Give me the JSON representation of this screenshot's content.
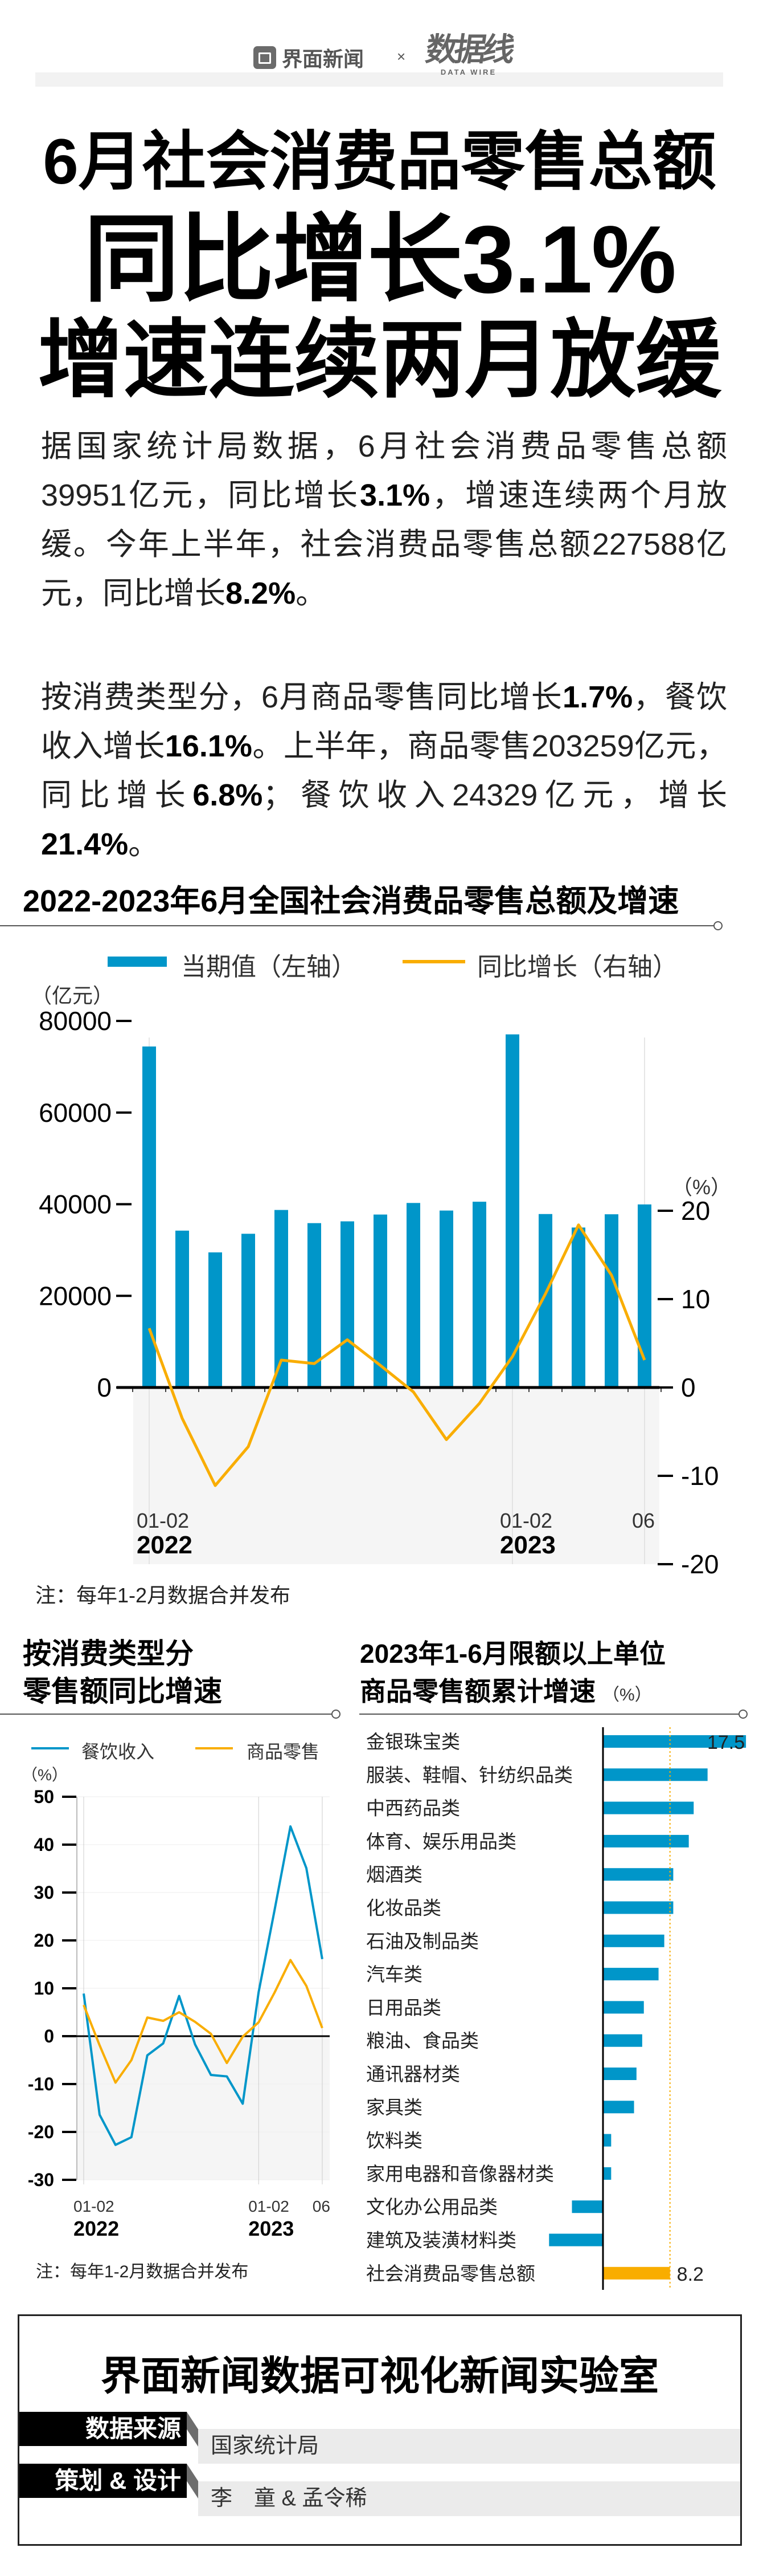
{
  "header": {
    "brand_left": "界面新闻",
    "separator": "×",
    "brand_right": "数据线",
    "brand_right_sub": "DATA WIRE"
  },
  "headline": {
    "line1": "6月社会消费品零售总额",
    "line2": "同比增长3.1%",
    "line3": "增速连续两月放缓"
  },
  "paragraphs": [
    [
      {
        "text": "据国家统计局数据，6月社会消费品零售总额39951亿元，同比增长",
        "bold": false
      },
      {
        "text": "3.1%",
        "bold": true
      },
      {
        "text": "，增速连续两个月放缓。今年上半年，社会消费品零售总额227588亿元，同比增长",
        "bold": false
      },
      {
        "text": "8.2%",
        "bold": true
      },
      {
        "text": "。",
        "bold": false
      }
    ],
    [
      {
        "text": "按消费类型分，6月商品零售同比增长",
        "bold": false
      },
      {
        "text": "1.7%",
        "bold": true
      },
      {
        "text": "，餐饮收入增长",
        "bold": false
      },
      {
        "text": "16.1%",
        "bold": true
      },
      {
        "text": "。上半年，商品零售203259亿元，同比增长",
        "bold": false
      },
      {
        "text": "6.8%",
        "bold": true
      },
      {
        "text": "；餐饮收入24329亿元，增长",
        "bold": false
      },
      {
        "text": "21.4%",
        "bold": true
      },
      {
        "text": "。",
        "bold": false
      }
    ]
  ],
  "colors": {
    "blue": "#0096c9",
    "orange": "#f9ad00",
    "shade": "#f5f5f5"
  },
  "chart_data": [
    {
      "type": "bar+line",
      "title": "2022-2023年6月全国社会消费品零售总额及增速",
      "legend": [
        "当期值（左轴）",
        "同比增长（右轴）"
      ],
      "left_axis": {
        "unit": "（亿元）",
        "range": [
          0,
          80000
        ],
        "ticks": [
          "0",
          "20000",
          "40000",
          "60000",
          "80000"
        ]
      },
      "right_axis": {
        "unit": "（%）",
        "range": [
          -20,
          20
        ],
        "ticks": [
          "-20",
          "-10",
          "0",
          "10",
          "20"
        ]
      },
      "categories": [
        "2022-01-02",
        "2022-03",
        "2022-04",
        "2022-05",
        "2022-06",
        "2022-07",
        "2022-08",
        "2022-09",
        "2022-10",
        "2022-11",
        "2022-12",
        "2023-01-02",
        "2023-03",
        "2023-04",
        "2023-05",
        "2023-06"
      ],
      "x_tick_labels": [
        {
          "index": 0,
          "label": "01-02",
          "year": "2022"
        },
        {
          "index": 11,
          "label": "01-02",
          "year": "2023"
        },
        {
          "index": 15,
          "label": "06",
          "year": ""
        }
      ],
      "series": [
        {
          "name": "当期值（左轴）",
          "axis": "left",
          "kind": "bar",
          "values": [
            74426,
            34233,
            29483,
            33547,
            38742,
            35870,
            36258,
            37745,
            40271,
            38615,
            40542,
            77067,
            37855,
            34910,
            37803,
            39951
          ]
        },
        {
          "name": "同比增长（右轴）",
          "axis": "right",
          "kind": "line",
          "values": [
            6.7,
            -3.5,
            -11.1,
            -6.7,
            3.1,
            2.7,
            5.4,
            2.5,
            -0.5,
            -5.9,
            -1.8,
            3.5,
            10.6,
            18.4,
            12.7,
            3.1
          ]
        }
      ],
      "note": "注：每年1-2月数据合并发布"
    },
    {
      "type": "line",
      "title": [
        "按消费类型分",
        "零售额同比增速"
      ],
      "legend": [
        "餐饮收入",
        "商品零售"
      ],
      "y_axis": {
        "unit": "（%）",
        "range": [
          -30,
          50
        ],
        "ticks": [
          "-30",
          "-20",
          "-10",
          "0",
          "10",
          "20",
          "30",
          "40",
          "50"
        ]
      },
      "categories": [
        "2022-01-02",
        "2022-03",
        "2022-04",
        "2022-05",
        "2022-06",
        "2022-07",
        "2022-08",
        "2022-09",
        "2022-10",
        "2022-11",
        "2022-12",
        "2023-01-02",
        "2023-03",
        "2023-04",
        "2023-05",
        "2023-06"
      ],
      "x_tick_labels": [
        {
          "index": 0,
          "label": "01-02",
          "year": "2022"
        },
        {
          "index": 11,
          "label": "01-02",
          "year": "2023"
        },
        {
          "index": 15,
          "label": "06",
          "year": ""
        }
      ],
      "series": [
        {
          "name": "餐饮收入",
          "values": [
            8.9,
            -16.4,
            -22.7,
            -21.1,
            -4.0,
            -1.5,
            8.4,
            -1.7,
            -8.1,
            -8.4,
            -14.1,
            9.2,
            26.3,
            43.8,
            35.1,
            16.1
          ]
        },
        {
          "name": "商品零售",
          "values": [
            6.5,
            -1.9,
            -9.7,
            -5.0,
            3.9,
            3.2,
            5.0,
            3.0,
            0.5,
            -5.6,
            -0.1,
            2.9,
            9.1,
            15.9,
            10.5,
            1.7
          ]
        }
      ],
      "note": "注：每年1-2月数据合并发布"
    },
    {
      "type": "bar",
      "orientation": "horizontal",
      "title": [
        "2023年1-6月限额以上单位",
        "商品零售额累计增速"
      ],
      "unit": "（%）",
      "categories": [
        "金银珠宝类",
        "服装、鞋帽、针纺织品类",
        "中西药品类",
        "体育、娱乐用品类",
        "烟酒类",
        "化妆品类",
        "石油及制品类",
        "汽车类",
        "日用品类",
        "粮油、食品类",
        "通讯器材类",
        "家具类",
        "饮料类",
        "家用电器和音像器材类",
        "文化办公用品类",
        "建筑及装潢材料类",
        "社会消费品零售总额"
      ],
      "values": [
        17.5,
        12.8,
        11.1,
        10.5,
        8.6,
        8.6,
        7.5,
        6.8,
        5.0,
        4.8,
        4.1,
        3.8,
        1.0,
        1.0,
        -3.8,
        -6.6,
        8.2
      ],
      "data_labels": [
        {
          "index": 0,
          "text": "17.5"
        },
        {
          "index": 16,
          "text": "8.2"
        }
      ],
      "reference_line": 8.2,
      "highlight_index": 16
    }
  ],
  "footer": {
    "title": "界面新闻数据可视化新闻实验室",
    "source_label": "数据来源",
    "source_value": "国家统计局",
    "credit_label": "策划 & 设计",
    "credit_value": "李　童 & 孟令稀"
  }
}
